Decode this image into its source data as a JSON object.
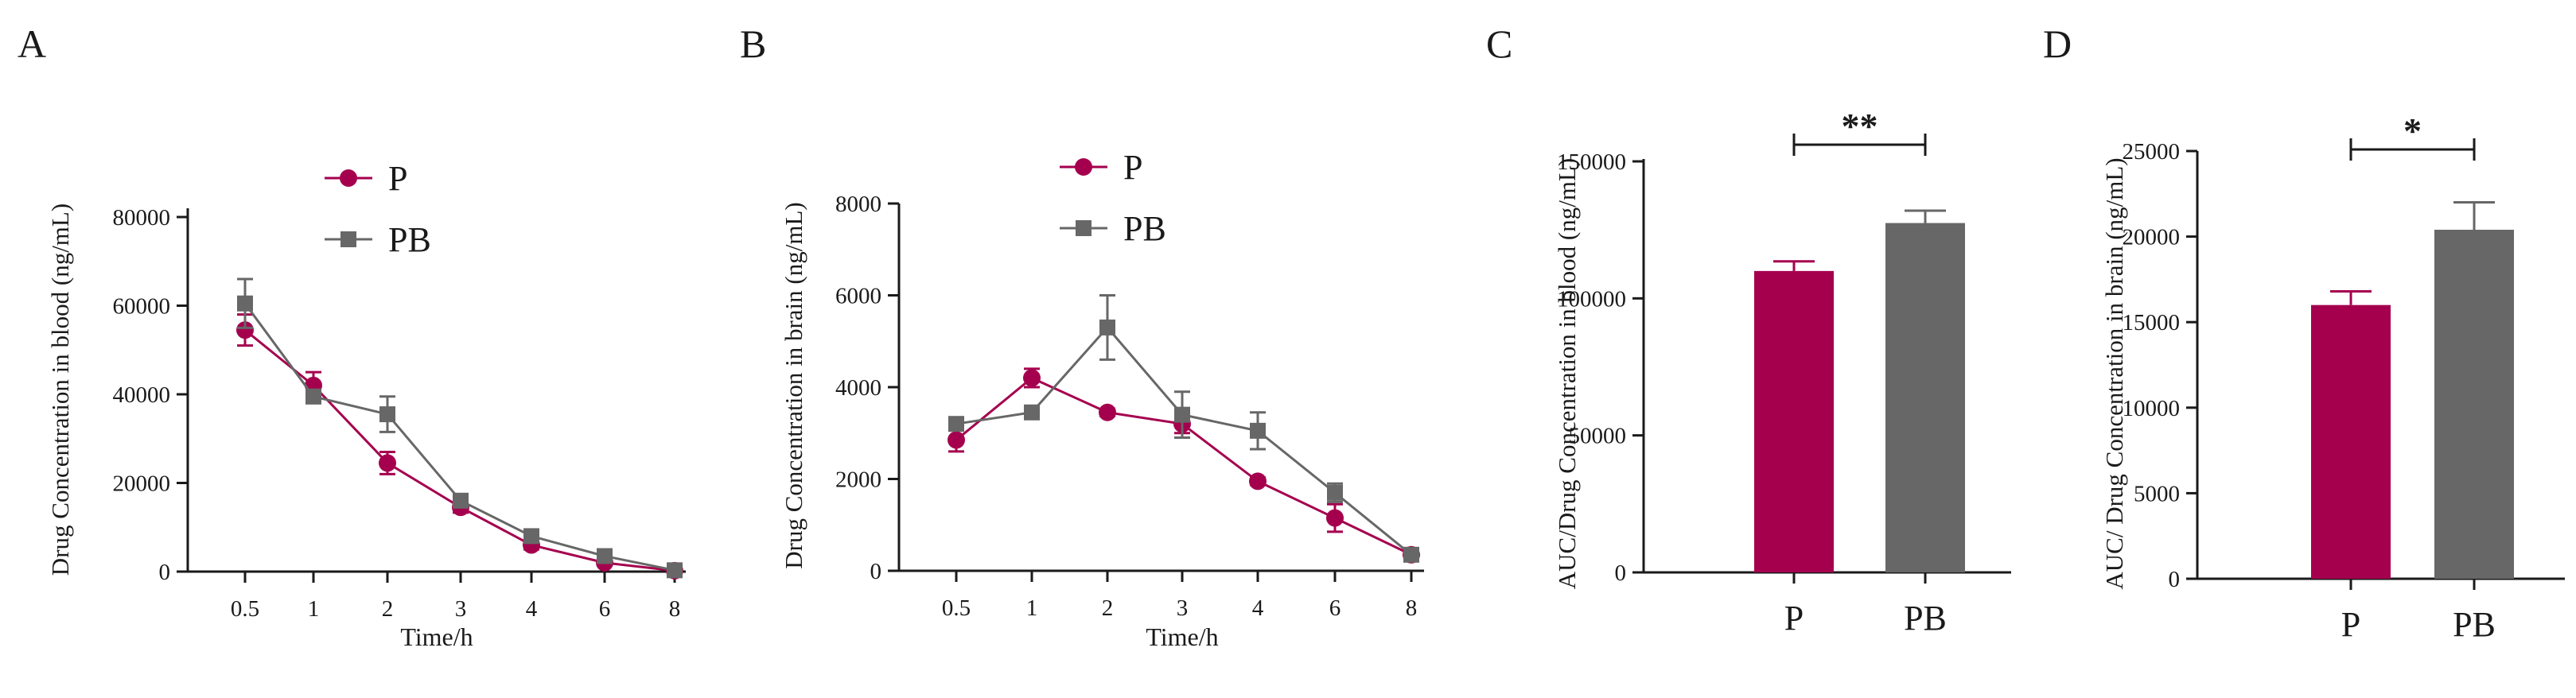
{
  "colors": {
    "P": "#A5004E",
    "PB": "#676767",
    "axis": "#1a1a1a"
  },
  "chart_data": [
    {
      "panel": "A",
      "type": "line",
      "xlabel": "Time/h",
      "ylabel": "Drug Concentration in blood (ng/mL)",
      "categories": [
        "0.5",
        "1",
        "2",
        "3",
        "4",
        "6",
        "8"
      ],
      "ylim": [
        0,
        80000
      ],
      "yticks": [
        0,
        20000,
        40000,
        60000,
        80000
      ],
      "legend": "top-center",
      "series": [
        {
          "name": "P",
          "marker": "circle",
          "values": [
            54500,
            42000,
            24500,
            14500,
            6000,
            2000,
            200
          ],
          "errors": [
            3500,
            3000,
            2500,
            1200,
            1000,
            600,
            200
          ]
        },
        {
          "name": "PB",
          "marker": "square",
          "values": [
            60500,
            39500,
            35500,
            16000,
            8000,
            3500,
            300
          ],
          "errors": [
            5500,
            1500,
            4000,
            1000,
            800,
            700,
            200
          ]
        }
      ]
    },
    {
      "panel": "B",
      "type": "line",
      "xlabel": "Time/h",
      "ylabel": "Drug Concentration in brain (ng/mL)",
      "categories": [
        "0.5",
        "1",
        "2",
        "3",
        "4",
        "6",
        "8"
      ],
      "ylim": [
        0,
        8000
      ],
      "yticks": [
        0,
        2000,
        4000,
        6000,
        8000
      ],
      "legend": "top-center",
      "series": [
        {
          "name": "P",
          "marker": "circle",
          "values": [
            2850,
            4200,
            3450,
            3200,
            1950,
            1150,
            350
          ],
          "errors": [
            250,
            200,
            80,
            200,
            80,
            300,
            80
          ]
        },
        {
          "name": "PB",
          "marker": "square",
          "values": [
            3200,
            3450,
            5300,
            3400,
            3050,
            1700,
            350
          ],
          "errors": [
            120,
            100,
            700,
            500,
            400,
            200,
            80
          ]
        }
      ]
    },
    {
      "panel": "C",
      "type": "bar",
      "ylabel": "AUC/Drug Concentration in blood (ng/mL)",
      "categories": [
        "P",
        "PB"
      ],
      "values": [
        110000,
        127500
      ],
      "errors": [
        3500,
        4500
      ],
      "ylim": [
        0,
        150000
      ],
      "yticks": [
        0,
        50000,
        100000,
        150000
      ],
      "significance": "**"
    },
    {
      "panel": "D",
      "type": "bar",
      "ylabel": "AUC/ Drug Concentration in brain (ng/mL)",
      "categories": [
        "P",
        "PB"
      ],
      "values": [
        16000,
        20400
      ],
      "errors": [
        800,
        1600
      ],
      "ylim": [
        0,
        25000
      ],
      "yticks": [
        0,
        5000,
        10000,
        15000,
        20000,
        25000
      ],
      "significance": "*"
    }
  ]
}
